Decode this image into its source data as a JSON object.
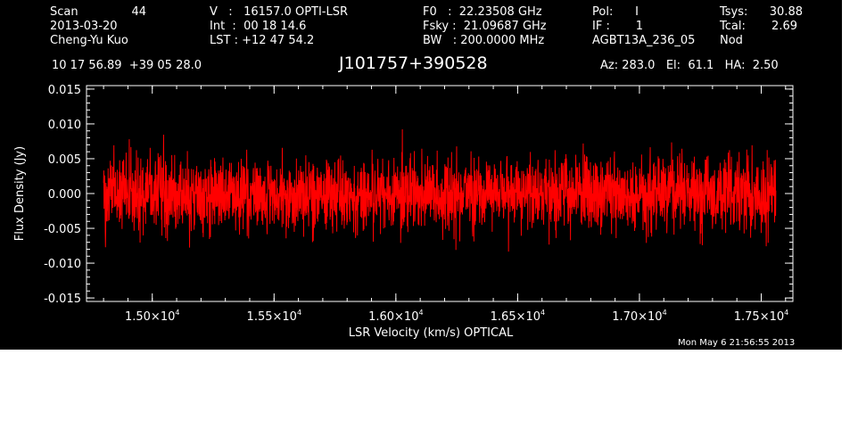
{
  "header": {
    "scan_label": "Scan",
    "scan_number": "44",
    "date": "2013-03-20",
    "observer": "Cheng-Yu Kuo",
    "velocity": "V   :   16157.0 OPTI-LSR",
    "integration": "Int  :  00 18 14.6",
    "lst": "LST : +12 47 54.2",
    "f0": "F0   :  22.23508 GHz",
    "fsky": "Fsky :  21.09687 GHz",
    "bw": "BW   : 200.0000 MHz",
    "pol": "Pol:      I",
    "if": "IF :       1",
    "project": "AGBT13A_236_05",
    "tsys_label": "Tsys:",
    "tsys_value": "30.88",
    "tcal_label": "Tcal:",
    "tcal_value": "2.69",
    "mode": "Nod",
    "coords": "10 17 56.89  +39 05 28.0",
    "source": "J101757+390528",
    "azelha": "Az: 283.0   El:  61.1   HA:  2.50"
  },
  "timestamp": "Mon May  6 21:56:55 2013",
  "colors": {
    "background": "#000000",
    "foreground": "#ffffff",
    "spectrum": "#ff0000"
  },
  "chart_data": {
    "type": "line",
    "xlabel": "LSR Velocity (km/s) OPTICAL",
    "ylabel": "Flux Density (Jy)",
    "xlim": [
      14730,
      17630
    ],
    "ylim": [
      -0.0155,
      0.0155
    ],
    "x_range": [
      14800,
      17560
    ],
    "x_major_ticks": [
      {
        "value": 15000,
        "mantissa": "1.50",
        "exponent": "4"
      },
      {
        "value": 15500,
        "mantissa": "1.55",
        "exponent": "4"
      },
      {
        "value": 16000,
        "mantissa": "1.60",
        "exponent": "4"
      },
      {
        "value": 16500,
        "mantissa": "1.65",
        "exponent": "4"
      },
      {
        "value": 17000,
        "mantissa": "1.70",
        "exponent": "4"
      },
      {
        "value": 17500,
        "mantissa": "1.75",
        "exponent": "4"
      }
    ],
    "x_minor_step": 100,
    "y_major_ticks": [
      {
        "value": 0.015,
        "label": "0.015"
      },
      {
        "value": 0.01,
        "label": "0.010"
      },
      {
        "value": 0.005,
        "label": "0.005"
      },
      {
        "value": 0.0,
        "label": "0.000"
      },
      {
        "value": -0.005,
        "label": "-0.005"
      },
      {
        "value": -0.01,
        "label": "-0.010"
      },
      {
        "value": -0.015,
        "label": "-0.015"
      }
    ],
    "y_minor_step": 0.001,
    "series": [
      {
        "rms": 0.0027,
        "mean": 0.0,
        "points": 2800,
        "peak_max": 0.0105,
        "peak_min": -0.0113
      }
    ]
  }
}
